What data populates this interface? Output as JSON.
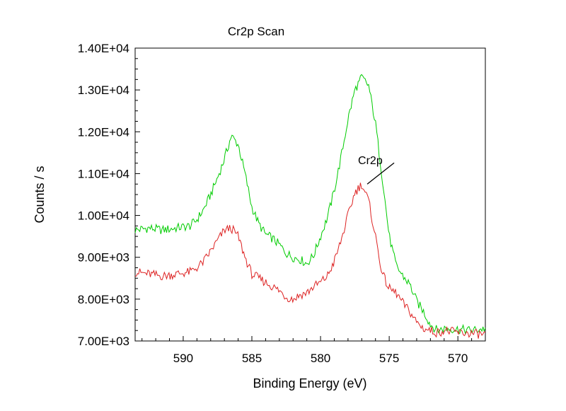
{
  "chart_data": {
    "type": "line",
    "title": "Cr2p Scan",
    "xlabel": "Binding Energy (eV)",
    "ylabel": "Counts / s",
    "xlim": [
      593.5,
      568.0
    ],
    "ylim": [
      7000,
      14000
    ],
    "x_reversed": true,
    "x_ticks": [
      590,
      585,
      580,
      575,
      570
    ],
    "x_tick_labels": [
      "590",
      "585",
      "580",
      "575",
      "570"
    ],
    "y_ticks": [
      7000,
      8000,
      9000,
      10000,
      11000,
      12000,
      13000,
      14000
    ],
    "y_tick_labels": [
      "7.00E+03",
      "8.00E+03",
      "9.00E+03",
      "1.00E+04",
      "1.10E+04",
      "1.20E+04",
      "1.30E+04",
      "1.40E+04"
    ],
    "grid": false,
    "legend": "none",
    "series": [
      {
        "color": "#00cc00",
        "x": [
          593.5,
          592.5,
          591.5,
          590.5,
          589.5,
          589.0,
          588.5,
          588.0,
          587.5,
          587.0,
          586.5,
          586.0,
          585.5,
          585.0,
          584.5,
          584.0,
          583.5,
          583.0,
          582.5,
          582.0,
          581.5,
          581.0,
          580.5,
          580.0,
          579.5,
          579.0,
          578.5,
          578.0,
          577.5,
          577.0,
          576.5,
          576.0,
          575.5,
          575.0,
          574.5,
          574.0,
          573.5,
          573.0,
          572.5,
          572.0,
          571.5,
          571.0,
          570.0,
          569.0,
          568.0
        ],
        "y": [
          9650,
          9700,
          9650,
          9700,
          9750,
          9900,
          10150,
          10500,
          10900,
          11350,
          11900,
          11700,
          11000,
          10200,
          9800,
          9550,
          9450,
          9300,
          9100,
          9000,
          8950,
          8850,
          9050,
          9500,
          9950,
          10600,
          11400,
          12300,
          13000,
          13300,
          13100,
          12200,
          10900,
          9500,
          8800,
          8550,
          8350,
          7950,
          7700,
          7400,
          7250,
          7300,
          7280,
          7250,
          7300
        ]
      },
      {
        "color": "#dd2222",
        "x": [
          593.5,
          592.5,
          591.5,
          590.5,
          589.5,
          589.0,
          588.5,
          588.0,
          587.5,
          587.0,
          586.5,
          586.0,
          585.5,
          585.0,
          584.5,
          584.0,
          583.5,
          583.0,
          582.5,
          582.0,
          581.5,
          581.0,
          580.5,
          580.0,
          579.5,
          579.0,
          578.5,
          578.0,
          577.5,
          577.0,
          576.5,
          576.0,
          575.5,
          575.0,
          574.5,
          574.0,
          573.5,
          573.0,
          572.5,
          572.0,
          571.5,
          571.0,
          570.0,
          569.0,
          568.0
        ],
        "y": [
          8650,
          8600,
          8550,
          8600,
          8650,
          8750,
          8900,
          9150,
          9400,
          9650,
          9700,
          9500,
          9000,
          8600,
          8500,
          8400,
          8300,
          8200,
          8050,
          8000,
          8100,
          8150,
          8300,
          8400,
          8550,
          8900,
          9400,
          10000,
          10550,
          10750,
          10350,
          9500,
          8600,
          8250,
          8150,
          7900,
          7700,
          7450,
          7300,
          7250,
          7200,
          7250,
          7200,
          7180,
          7150
        ]
      }
    ],
    "annotations": [
      {
        "text": "Cr2p",
        "x": 576.6,
        "y": 10750
      }
    ]
  }
}
